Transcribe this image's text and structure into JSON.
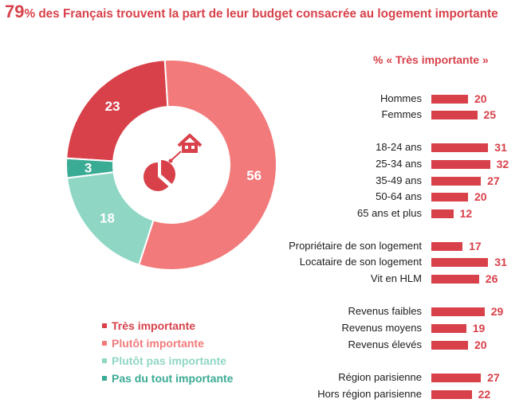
{
  "headline": {
    "number": "79",
    "text": "% des Français trouvent la part de leur budget consacrée au logement importante"
  },
  "colors": {
    "accent": "#d8414a",
    "legend_colors": [
      "#d8414a",
      "#f27a7b",
      "#8fd6c4",
      "#3aab94"
    ]
  },
  "chart_data": [
    {
      "type": "pie",
      "variant": "donut",
      "labels": [
        "Très importante",
        "Plutôt importante",
        "Plutôt pas importante",
        "Pas du tout importante"
      ],
      "values": [
        23,
        56,
        18,
        3
      ],
      "colors": [
        "#d8414a",
        "#f27a7b",
        "#8fd6c4",
        "#3aab94"
      ],
      "center_icon": "house-pie-icon",
      "legend": [
        "Très importante",
        "Plutôt importante",
        "Plutôt pas importante",
        "Pas du tout importante"
      ]
    },
    {
      "type": "bar",
      "orientation": "horizontal",
      "title": "% « Très importante »",
      "categories": [
        "Hommes",
        "Femmes",
        "18-24 ans",
        "25-34 ans",
        "35-49 ans",
        "50-64 ans",
        "65 ans et plus",
        "Propriétaire de son logement",
        "Locataire de son logement",
        "Vit en HLM",
        "Revenus faibles",
        "Revenus moyens",
        "Revenus élevés",
        "Région parisienne",
        "Hors région parisienne"
      ],
      "values": [
        20,
        25,
        31,
        32,
        27,
        20,
        12,
        17,
        31,
        26,
        29,
        19,
        20,
        27,
        22
      ],
      "groups": [
        [
          0,
          1
        ],
        [
          2,
          3,
          4,
          5,
          6
        ],
        [
          7,
          8,
          9
        ],
        [
          10,
          11,
          12
        ],
        [
          13,
          14
        ]
      ],
      "color": "#d8414a"
    }
  ]
}
